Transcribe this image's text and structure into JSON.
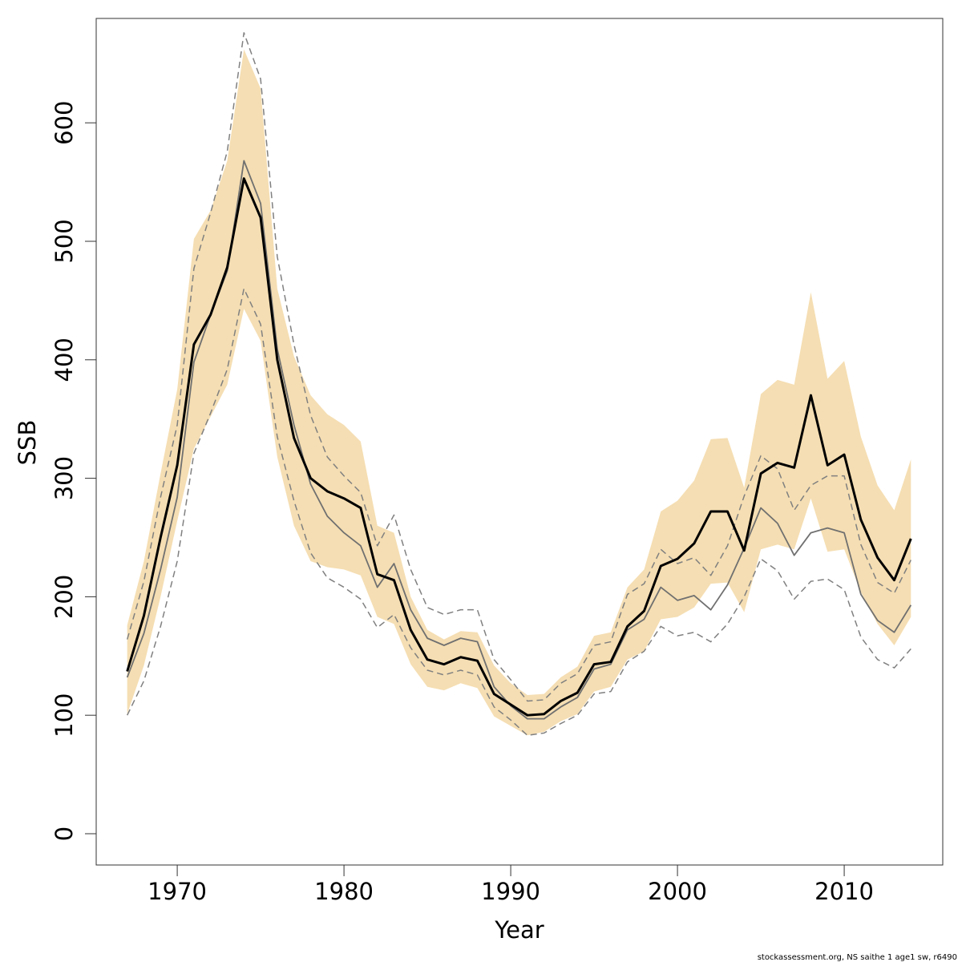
{
  "chart_data": {
    "type": "line",
    "x_label": "Year",
    "y_label": "SSB",
    "caption": "stockassessment.org, NS saithe 1 age1 sw, r6490",
    "x": [
      1967,
      1968,
      1969,
      1970,
      1971,
      1972,
      1973,
      1974,
      1975,
      1976,
      1977,
      1978,
      1979,
      1980,
      1981,
      1982,
      1983,
      1984,
      1985,
      1986,
      1987,
      1988,
      1989,
      1990,
      1991,
      1992,
      1993,
      1994,
      1995,
      1996,
      1997,
      1998,
      1999,
      2000,
      2001,
      2002,
      2003,
      2004,
      2005,
      2006,
      2007,
      2008,
      2009,
      2010,
      2011,
      2012,
      2013,
      2014
    ],
    "band": {
      "color": "#f5deb3",
      "upper": [
        176,
        230,
        304,
        375,
        502,
        526,
        568,
        662,
        629,
        460,
        403,
        370,
        354,
        345,
        331,
        260,
        254,
        200,
        172,
        164,
        171,
        170,
        142,
        127,
        117,
        118,
        132,
        141,
        167,
        170,
        208,
        223,
        272,
        281,
        298,
        333,
        334,
        292,
        371,
        383,
        379,
        457,
        384,
        399,
        335,
        294,
        273,
        316
      ],
      "lower": [
        101,
        142,
        200,
        264,
        325,
        352,
        379,
        443,
        416,
        318,
        260,
        230,
        225,
        223,
        218,
        183,
        177,
        143,
        124,
        121,
        127,
        123,
        99,
        91,
        83,
        86,
        95,
        101,
        120,
        124,
        147,
        154,
        181,
        183,
        191,
        211,
        212,
        187,
        240,
        244,
        240,
        283,
        238,
        240,
        204,
        177,
        159,
        183
      ]
    },
    "series": [
      {
        "color": "#808080",
        "width": 1.5,
        "dashed": true,
        "values": [
          164,
          213,
          284,
          345,
          477,
          524,
          576,
          676,
          637,
          487,
          413,
          353,
          318,
          302,
          288,
          243,
          269,
          223,
          191,
          185,
          189,
          189,
          147,
          130,
          112,
          113,
          127,
          135,
          159,
          162,
          202,
          211,
          240,
          228,
          233,
          218,
          243,
          285,
          319,
          308,
          273,
          294,
          302,
          302,
          244,
          212,
          203,
          231
        ]
      },
      {
        "color": "#808080",
        "width": 1.5,
        "dashed": true,
        "values": [
          100,
          129,
          175,
          230,
          321,
          355,
          392,
          460,
          430,
          335,
          281,
          237,
          216,
          208,
          198,
          174,
          185,
          157,
          138,
          134,
          138,
          134,
          107,
          96,
          83,
          85,
          93,
          100,
          118,
          120,
          145,
          154,
          175,
          167,
          170,
          162,
          177,
          200,
          232,
          222,
          198,
          213,
          215,
          206,
          166,
          147,
          140,
          156
        ]
      },
      {
        "color": "#707070",
        "width": 1.8,
        "dashed": false,
        "values": [
          132,
          169,
          223,
          284,
          398,
          438,
          475,
          568,
          532,
          409,
          345,
          295,
          268,
          254,
          243,
          208,
          228,
          189,
          165,
          159,
          165,
          162,
          124,
          108,
          97,
          97,
          107,
          115,
          139,
          143,
          172,
          181,
          208,
          197,
          201,
          189,
          210,
          241,
          275,
          262,
          235,
          254,
          258,
          254,
          202,
          180,
          170,
          193
        ]
      },
      {
        "color": "#000000",
        "width": 3,
        "dashed": false,
        "values": [
          137,
          184,
          250,
          311,
          413,
          438,
          478,
          553,
          520,
          400,
          334,
          300,
          289,
          283,
          275,
          219,
          214,
          172,
          147,
          143,
          149,
          146,
          118,
          109,
          100,
          101,
          112,
          119,
          143,
          145,
          175,
          188,
          226,
          232,
          245,
          272,
          272,
          239,
          304,
          313,
          309,
          370,
          311,
          320,
          265,
          233,
          214,
          249
        ]
      }
    ],
    "xlim": [
      1965.14,
      2015.91
    ],
    "ylim": [
      -26.4,
      688.1
    ],
    "xticks": [
      1970,
      1980,
      1990,
      2000,
      2010
    ],
    "yticks": [
      0,
      100,
      200,
      300,
      400,
      500,
      600
    ]
  }
}
